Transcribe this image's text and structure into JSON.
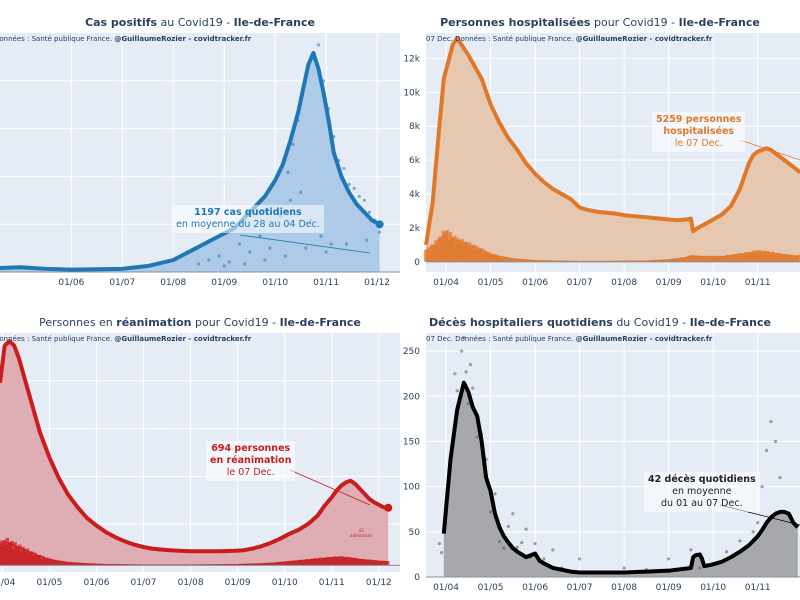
{
  "source_text": "Données : Santé publique France.",
  "author_text": "@GuillaumeRozier - covidtracker.fr",
  "date_prefix": "07 Dec.",
  "chart_data": [
    {
      "id": "cases",
      "type": "area",
      "title_parts": [
        {
          "text": "Cas positifs",
          "bold": true
        },
        {
          "text": " au Covid19 - ",
          "bold": false
        },
        {
          "text": "Ile-de-France",
          "bold": true
        }
      ],
      "color": "#1f77b4",
      "fill": "#a6c8e8",
      "x_ticks": [
        "01/06",
        "01/07",
        "01/08",
        "01/09",
        "01/10",
        "01/11",
        "01/12"
      ],
      "x_range_months": [
        4.6,
        12.45
      ],
      "y_ticks": [],
      "y_range": [
        0,
        6000
      ],
      "line_series": {
        "name": "Moyenne mobile 7j",
        "x": [
          4.6,
          5.0,
          5.5,
          6.0,
          6.5,
          7.0,
          7.5,
          8.0,
          8.3,
          8.6,
          8.9,
          9.2,
          9.5,
          9.8,
          10.0,
          10.15,
          10.3,
          10.45,
          10.55,
          10.65,
          10.75,
          10.85,
          10.95,
          11.05,
          11.15,
          11.3,
          11.45,
          11.6,
          11.75,
          11.9,
          12.05
        ],
        "y": [
          100,
          120,
          80,
          60,
          70,
          80,
          150,
          300,
          500,
          700,
          900,
          1100,
          1500,
          1900,
          2300,
          2700,
          3300,
          4000,
          4600,
          5200,
          5500,
          5100,
          4500,
          3800,
          3000,
          2400,
          2000,
          1700,
          1500,
          1300,
          1197
        ]
      },
      "scatter_series": {
        "name": "Cas quotidiens",
        "x": [
          8.5,
          8.7,
          8.9,
          9.1,
          9.3,
          9.5,
          9.7,
          9.9,
          10.1,
          10.25,
          10.35,
          10.45,
          10.55,
          10.65,
          10.75,
          10.85,
          10.95,
          11.05,
          11.15,
          11.25,
          11.35,
          11.45,
          11.55,
          11.65,
          11.75,
          11.85,
          11.95,
          12.05,
          9.0,
          9.4,
          9.8,
          10.2,
          10.6,
          11.0,
          11.4,
          11.8,
          10.3,
          10.5,
          10.7,
          10.9,
          11.1
        ],
        "y": [
          200,
          300,
          400,
          250,
          700,
          500,
          900,
          600,
          1400,
          2500,
          3200,
          3800,
          4600,
          5200,
          6200,
          5700,
          4800,
          4100,
          3400,
          2800,
          2600,
          2200,
          2100,
          1900,
          1800,
          1500,
          1300,
          1000,
          150,
          200,
          300,
          400,
          600,
          500,
          700,
          800,
          1800,
          2000,
          1300,
          900,
          700
        ]
      },
      "annotation": {
        "bold": "1197 cas quotidiens",
        "lines": [
          "en moyenne du 28 au 04 Dec."
        ]
      }
    },
    {
      "id": "hosp",
      "type": "area",
      "title_parts": [
        {
          "text": "Personnes hospitalisées",
          "bold": true
        },
        {
          "text": " pour Covid19 - ",
          "bold": false
        },
        {
          "text": "Ile-de-France",
          "bold": true
        }
      ],
      "color": "#e0782a",
      "fill": "#e6c3a9",
      "x_ticks": [
        "01/04",
        "01/05",
        "01/06",
        "01/07",
        "01/08",
        "01/09",
        "01/10",
        "01/11"
      ],
      "x_range_months": [
        3.55,
        11.95
      ],
      "y_ticks": [
        "0",
        "2k",
        "4k",
        "6k",
        "8k",
        "10k",
        "12k"
      ],
      "y_range": [
        -600,
        13500
      ],
      "line_series": {
        "name": "Hospitalisations",
        "x": [
          3.55,
          3.7,
          3.85,
          3.95,
          4.05,
          4.15,
          4.25,
          4.35,
          4.5,
          4.65,
          4.8,
          5.0,
          5.2,
          5.4,
          5.6,
          5.8,
          6.0,
          6.2,
          6.4,
          6.6,
          6.8,
          7.0,
          7.2,
          7.4,
          7.6,
          7.8,
          8.0,
          8.2,
          8.4,
          8.6,
          8.8,
          9.0,
          9.2,
          9.4,
          9.5,
          9.55,
          9.65,
          9.8,
          10.0,
          10.2,
          10.4,
          10.6,
          10.8,
          10.9,
          11.0,
          11.1,
          11.2,
          11.3,
          11.4,
          11.5,
          11.6,
          11.7,
          11.8,
          11.9,
          11.95
        ],
        "y": [
          1000,
          3500,
          8000,
          10800,
          11800,
          12800,
          13200,
          12800,
          12200,
          11500,
          10800,
          9300,
          8200,
          7300,
          6600,
          5800,
          5200,
          4700,
          4300,
          4000,
          3700,
          3200,
          3050,
          2950,
          2900,
          2850,
          2750,
          2700,
          2650,
          2600,
          2550,
          2500,
          2450,
          2500,
          2550,
          1800,
          2000,
          2200,
          2500,
          2800,
          3300,
          4300,
          5800,
          6300,
          6500,
          6600,
          6700,
          6600,
          6400,
          6200,
          6000,
          5800,
          5600,
          5400,
          5259
        ]
      },
      "bar_series": {
        "name": "Nouvelles admissions",
        "x": [
          3.6,
          3.8,
          4.0,
          4.2,
          4.4,
          4.6,
          4.8,
          5.0,
          5.2,
          5.5,
          6.0,
          6.5,
          7.0,
          7.5,
          8.0,
          8.5,
          9.0,
          9.4,
          9.5,
          9.8,
          10.2,
          10.5,
          10.8,
          11.0,
          11.2,
          11.4,
          11.6,
          11.8
        ],
        "y": [
          700,
          1100,
          1700,
          1300,
          1100,
          900,
          700,
          450,
          320,
          180,
          80,
          50,
          30,
          30,
          40,
          60,
          120,
          250,
          350,
          300,
          300,
          400,
          500,
          600,
          550,
          480,
          400,
          350
        ]
      },
      "annotation": {
        "bold": "5259 personnes hospitalisées",
        "bold_lines": [
          "5259 personnes",
          "hospitalisées"
        ],
        "lines": [
          "le 07 Dec."
        ]
      }
    },
    {
      "id": "rea",
      "type": "area",
      "title_parts": [
        {
          "text": "Personnes en ",
          "bold": false
        },
        {
          "text": "réanimation",
          "bold": true
        },
        {
          "text": " pour Covid19 - ",
          "bold": false
        },
        {
          "text": "Ile-de-France",
          "bold": true
        }
      ],
      "color": "#c81d1d",
      "fill": "#dea7ad",
      "x_ticks": [
        "01/04",
        "01/05",
        "01/06",
        "01/07",
        "01/08",
        "01/09",
        "01/10",
        "01/11",
        "01/12"
      ],
      "x_range_months": [
        3.95,
        12.45
      ],
      "y_ticks": [],
      "y_range": [
        -80,
        2800
      ],
      "line_series": {
        "name": "Réanimations",
        "x": [
          3.95,
          4.05,
          4.15,
          4.25,
          4.35,
          4.5,
          4.65,
          4.8,
          5.0,
          5.2,
          5.4,
          5.6,
          5.8,
          6.0,
          6.2,
          6.4,
          6.6,
          6.8,
          7.0,
          7.2,
          7.4,
          7.6,
          7.8,
          8.0,
          8.3,
          8.6,
          8.9,
          9.1,
          9.3,
          9.5,
          9.7,
          9.9,
          10.1,
          10.3,
          10.5,
          10.7,
          10.85,
          11.0,
          11.1,
          11.2,
          11.3,
          11.4,
          11.5,
          11.6,
          11.7,
          11.8,
          11.9,
          12.0,
          12.1,
          12.2
        ],
        "y": [
          2200,
          2650,
          2700,
          2650,
          2500,
          2200,
          1900,
          1600,
          1300,
          1050,
          850,
          700,
          570,
          480,
          400,
          340,
          290,
          250,
          220,
          200,
          190,
          180,
          175,
          170,
          170,
          170,
          175,
          180,
          200,
          230,
          270,
          320,
          380,
          430,
          500,
          600,
          720,
          820,
          900,
          960,
          1000,
          1020,
          980,
          920,
          860,
          800,
          760,
          730,
          700,
          694
        ]
      },
      "bar_series": {
        "name": "Nouvelles admissions",
        "x": [
          3.95,
          4.1,
          4.3,
          4.5,
          4.7,
          4.9,
          5.1,
          5.4,
          5.8,
          6.2,
          7.0,
          8.0,
          9.0,
          9.5,
          9.8,
          10.1,
          10.4,
          10.7,
          11.0,
          11.2,
          11.4,
          11.6,
          11.8,
          12.0,
          12.2
        ],
        "y": [
          250,
          280,
          230,
          180,
          130,
          90,
          60,
          35,
          20,
          10,
          5,
          5,
          10,
          20,
          30,
          45,
          60,
          75,
          90,
          95,
          85,
          70,
          60,
          50,
          43
        ]
      },
      "annotation": {
        "bold_lines": [
          "694 personnes",
          "en réanimation"
        ],
        "lines": [
          "le 07 Dec."
        ]
      },
      "small_annotation": {
        "value": "43",
        "label": "admissions"
      }
    },
    {
      "id": "deces",
      "type": "area",
      "title_parts": [
        {
          "text": "Décès hospitaliers quotidiens",
          "bold": true
        },
        {
          "text": " du Covid19 - ",
          "bold": false
        },
        {
          "text": "Ile-de-France",
          "bold": true
        }
      ],
      "color": "#000000",
      "fill": "#9ea1a5",
      "x_ticks": [
        "01/04",
        "01/05",
        "01/06",
        "01/07",
        "01/08",
        "01/09",
        "01/10",
        "01/11"
      ],
      "x_range_months": [
        3.55,
        11.95
      ],
      "y_ticks": [
        "0",
        "50",
        "100",
        "150",
        "200",
        "250"
      ],
      "y_range": [
        0,
        270
      ],
      "line_series": {
        "name": "Moyenne 7j",
        "x": [
          3.95,
          4.1,
          4.25,
          4.4,
          4.5,
          4.6,
          4.7,
          4.8,
          4.9,
          5.0,
          5.1,
          5.2,
          5.3,
          5.4,
          5.5,
          5.6,
          5.8,
          6.0,
          6.1,
          6.2,
          6.4,
          6.6,
          6.8,
          7.0,
          7.5,
          8.0,
          8.5,
          9.0,
          9.5,
          9.55,
          9.6,
          9.7,
          9.75,
          9.8,
          10.0,
          10.2,
          10.4,
          10.6,
          10.8,
          11.0,
          11.1,
          11.2,
          11.3,
          11.4,
          11.5,
          11.6,
          11.7,
          11.8,
          11.9
        ],
        "y": [
          48,
          130,
          185,
          215,
          205,
          188,
          178,
          150,
          110,
          95,
          70,
          55,
          45,
          38,
          32,
          28,
          22,
          26,
          18,
          15,
          10,
          8,
          6,
          5,
          5,
          5,
          6,
          7,
          10,
          22,
          24,
          25,
          20,
          12,
          14,
          17,
          22,
          28,
          35,
          45,
          52,
          60,
          66,
          70,
          72,
          72,
          70,
          60,
          55
        ]
      },
      "scatter_series": {
        "name": "Décès quotidiens",
        "x": [
          3.85,
          3.9,
          4.0,
          4.05,
          4.1,
          4.15,
          4.2,
          4.25,
          4.3,
          4.35,
          4.4,
          4.45,
          4.5,
          4.55,
          4.6,
          4.7,
          4.8,
          4.9,
          5.0,
          5.1,
          5.2,
          5.3,
          5.4,
          5.5,
          5.6,
          5.7,
          5.8,
          5.9,
          6.0,
          6.2,
          6.4,
          6.6,
          7.0,
          7.5,
          8.0,
          8.5,
          9.0,
          9.5,
          9.7,
          10.0,
          10.3,
          10.6,
          10.9,
          11.0,
          11.1,
          11.2,
          11.3,
          11.4,
          11.5
        ],
        "y": [
          37,
          27,
          68,
          97,
          120,
          148,
          225,
          206,
          194,
          250,
          265,
          227,
          192,
          235,
          209,
          155,
          158,
          130,
          72,
          92,
          39,
          32,
          56,
          70,
          33,
          38,
          53,
          22,
          37,
          20,
          30,
          10,
          20,
          5,
          10,
          8,
          20,
          30,
          10,
          15,
          28,
          40,
          50,
          60,
          100,
          140,
          172,
          150,
          110
        ]
      },
      "annotation": {
        "bold": "42 décès quotidiens",
        "lines": [
          "en moyenne",
          "du 01 au 07 Dec."
        ]
      }
    }
  ]
}
